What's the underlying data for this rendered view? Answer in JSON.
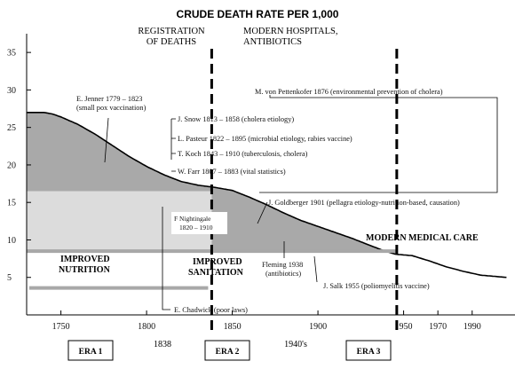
{
  "chart_data": {
    "type": "area",
    "title": "CRUDE DEATH RATE PER 1,000",
    "xlabel": "",
    "ylabel": "",
    "xlim": [
      1730,
      2015
    ],
    "ylim": [
      0,
      37.5
    ],
    "x_ticks": [
      1750,
      1800,
      1850,
      1900,
      1950,
      1970,
      1990
    ],
    "x_tick_labels": [
      "1750",
      "1800",
      "1850",
      "1900",
      "1950",
      "1970",
      "1990"
    ],
    "y_ticks": [
      5,
      10,
      15,
      20,
      25,
      30,
      35
    ],
    "y_tick_labels": [
      "5",
      "10",
      "15",
      "20",
      "25",
      "30",
      "35"
    ],
    "grid": false,
    "series": [
      {
        "values_x": [
          1730,
          1740,
          1745,
          1750,
          1760,
          1770,
          1780,
          1790,
          1800,
          1810,
          1820,
          1830,
          1840,
          1850,
          1860,
          1870,
          1880,
          1890,
          1900,
          1910,
          1920,
          1930,
          1938,
          1945,
          1955,
          1965,
          1975,
          1985,
          1995,
          2005,
          2010
        ],
        "values_y": [
          27,
          27,
          26.8,
          26.4,
          25.4,
          24.1,
          22.6,
          21.1,
          19.8,
          18.7,
          17.8,
          17.3,
          17,
          16.6,
          15.7,
          14.7,
          13.6,
          12.6,
          11.8,
          11,
          10.2,
          9.3,
          8.6,
          8.1,
          7.9,
          7.2,
          6.4,
          5.8,
          5.3,
          5.1,
          5
        ]
      }
    ],
    "bands": [
      {
        "from": 0,
        "to": 8.5,
        "label": "IMPROVED NUTRITION"
      },
      {
        "from": 8.5,
        "to": 16.5,
        "label": ""
      },
      {
        "from": 16.5,
        "to": 27,
        "label": ""
      }
    ],
    "vertical_markers": [
      {
        "x": 1838,
        "label": "1838",
        "heading": [
          "REGISTRATION",
          "OF DEATHS"
        ]
      },
      {
        "x": 1946,
        "label": "1940's",
        "heading": [
          "MODERN HOSPITALS,",
          "ANTIBIOTICS"
        ]
      }
    ],
    "eras": [
      "ERA 1",
      "ERA 2",
      "ERA 3"
    ],
    "region_labels": {
      "nutrition": [
        "IMPROVED",
        "NUTRITION"
      ],
      "sanitation": [
        "IMPROVED",
        "SANITATION"
      ],
      "modern_care": "MODERN MEDICAL CARE"
    },
    "annotations": {
      "jenner": [
        "E. Jenner 1779 – 1823",
        "(small pox vaccination)"
      ],
      "pettenkofer": "M. von Pettenkofer 1876 (environmental prevention of cholera)",
      "snow": "J. Snow 1813 – 1858 (cholera etiology)",
      "pasteur": "L. Pasteur 1822 – 1895 (microbial etiology, rabies vaccine)",
      "koch": "T. Koch 1843 – 1910 (tuberculosis, cholera)",
      "farr": "W. Farr 1807 – 1883 (vital statistics)",
      "goldberger": "J. Goldberger 1901 (pellagra etiology-nutrition-based, causation)",
      "nightingale": [
        "F Nightingale",
        "1820 – 1910"
      ],
      "fleming": [
        "Fleming 1938",
        "(antibiotics)"
      ],
      "salk": "J. Salk 1955 (poliomyelitis vaccine)",
      "chadwick": "E. Chadwick (poor laws)"
    }
  }
}
